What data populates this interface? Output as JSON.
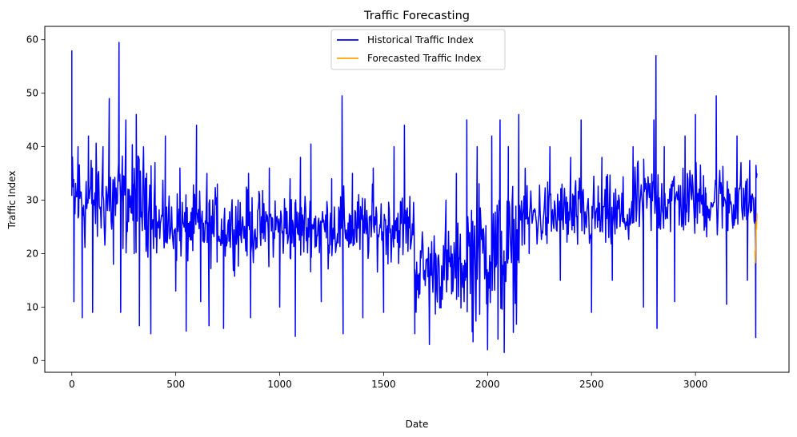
{
  "chart_data": {
    "type": "line",
    "title": "Traffic Forecasting",
    "xlabel": "Date",
    "ylabel": "Traffic Index",
    "xlim": [
      -130,
      3450
    ],
    "ylim": [
      -2.2,
      62.5
    ],
    "x_ticks": [
      0,
      500,
      1000,
      1500,
      2000,
      2500,
      3000
    ],
    "y_ticks": [
      0,
      10,
      20,
      30,
      40,
      50,
      60
    ],
    "grid": false,
    "legend_position": "upper center",
    "series": [
      {
        "name": "Historical Traffic Index",
        "color": "#0000ff",
        "summary_points": [
          [
            0,
            58
          ],
          [
            10,
            11
          ],
          [
            30,
            40
          ],
          [
            50,
            8
          ],
          [
            80,
            42
          ],
          [
            100,
            9
          ],
          [
            150,
            40
          ],
          [
            180,
            49
          ],
          [
            200,
            18
          ],
          [
            227,
            59.5
          ],
          [
            235,
            9
          ],
          [
            260,
            45
          ],
          [
            300,
            20
          ],
          [
            310,
            46
          ],
          [
            325,
            6.5
          ],
          [
            360,
            35
          ],
          [
            380,
            5
          ],
          [
            400,
            37
          ],
          [
            450,
            42
          ],
          [
            500,
            13
          ],
          [
            520,
            36
          ],
          [
            550,
            5.5
          ],
          [
            600,
            44
          ],
          [
            620,
            11
          ],
          [
            650,
            35
          ],
          [
            660,
            6.5
          ],
          [
            700,
            33
          ],
          [
            730,
            6
          ],
          [
            800,
            30
          ],
          [
            850,
            35
          ],
          [
            860,
            8
          ],
          [
            900,
            30
          ],
          [
            950,
            36
          ],
          [
            1000,
            10
          ],
          [
            1050,
            34
          ],
          [
            1075,
            4.5
          ],
          [
            1100,
            38
          ],
          [
            1150,
            40.5
          ],
          [
            1200,
            11
          ],
          [
            1250,
            34
          ],
          [
            1300,
            49.5
          ],
          [
            1305,
            5
          ],
          [
            1350,
            35
          ],
          [
            1400,
            8
          ],
          [
            1450,
            36
          ],
          [
            1500,
            9
          ],
          [
            1550,
            40
          ],
          [
            1600,
            44
          ],
          [
            1650,
            5
          ],
          [
            1700,
            14
          ],
          [
            1720,
            3
          ],
          [
            1750,
            20
          ],
          [
            1800,
            30
          ],
          [
            1850,
            35
          ],
          [
            1900,
            45
          ],
          [
            1930,
            3.5
          ],
          [
            1950,
            40
          ],
          [
            2000,
            2
          ],
          [
            2020,
            42
          ],
          [
            2050,
            4
          ],
          [
            2060,
            45
          ],
          [
            2080,
            1.5
          ],
          [
            2100,
            40
          ],
          [
            2150,
            46
          ],
          [
            2200,
            20
          ],
          [
            2300,
            40
          ],
          [
            2350,
            15
          ],
          [
            2400,
            38
          ],
          [
            2450,
            45
          ],
          [
            2500,
            9
          ],
          [
            2550,
            38
          ],
          [
            2600,
            15
          ],
          [
            2700,
            40
          ],
          [
            2750,
            10
          ],
          [
            2800,
            45
          ],
          [
            2810,
            57
          ],
          [
            2815,
            6
          ],
          [
            2850,
            40
          ],
          [
            2900,
            11
          ],
          [
            2950,
            42
          ],
          [
            3000,
            46
          ],
          [
            3050,
            25
          ],
          [
            3100,
            49.5
          ],
          [
            3150,
            10.5
          ],
          [
            3200,
            42
          ],
          [
            3250,
            15
          ],
          [
            3290,
            4.3
          ],
          [
            3296,
            35
          ]
        ]
      },
      {
        "name": "Forecasted Traffic Index",
        "color": "#ffa500",
        "values": [
          [
            3286,
            20.6
          ],
          [
            3288,
            18.2
          ],
          [
            3290,
            22.5
          ],
          [
            3292,
            26.0
          ],
          [
            3294,
            24.5
          ],
          [
            3296,
            27.6
          ]
        ]
      }
    ]
  }
}
